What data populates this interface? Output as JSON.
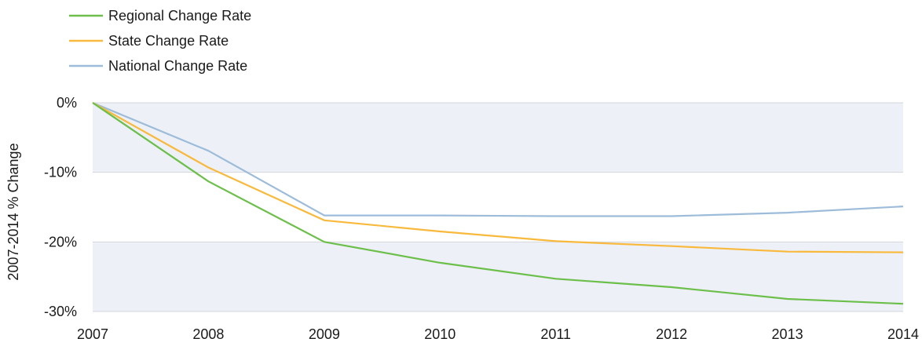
{
  "chart_data": {
    "type": "line",
    "title": "",
    "xlabel": "",
    "ylabel": "2007-2014 % Change",
    "x": [
      "2007",
      "2008",
      "2009",
      "2010",
      "2011",
      "2012",
      "2013",
      "2014"
    ],
    "ylim": [
      -30,
      0
    ],
    "yticks": [
      0,
      -10,
      -20,
      -30
    ],
    "ytick_labels": [
      "0%",
      "-10%",
      "-20%",
      "-30%"
    ],
    "grid": true,
    "banded_background": true,
    "legend_position": "top-left",
    "series": [
      {
        "name": "Regional Change Rate",
        "color": "#6cbf4a",
        "values": [
          0,
          -11.3,
          -20.0,
          -23.0,
          -25.3,
          -26.5,
          -28.2,
          -28.9
        ]
      },
      {
        "name": "State Change Rate",
        "color": "#f8b93c",
        "values": [
          0,
          -9.3,
          -16.9,
          -18.5,
          -19.9,
          -20.6,
          -21.4,
          -21.5
        ]
      },
      {
        "name": "National Change Rate",
        "color": "#9dbcd9",
        "values": [
          0,
          -6.9,
          -16.2,
          -16.2,
          -16.3,
          -16.3,
          -15.8,
          -14.9
        ]
      }
    ]
  }
}
